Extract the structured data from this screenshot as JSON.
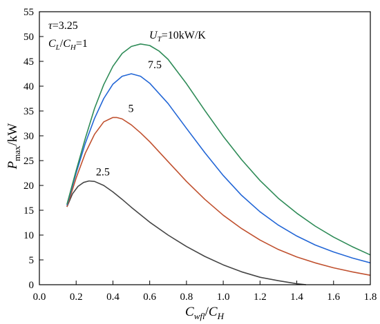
{
  "chart_data": {
    "type": "line",
    "title": "",
    "xlabel": {
      "main": "C",
      "sub1": "wfl",
      "slash": "/",
      "main2": "C",
      "sub2": "H"
    },
    "ylabel": {
      "main": "P",
      "sub": "max",
      "unit": "/kW"
    },
    "xlim": [
      0.0,
      1.8
    ],
    "ylim": [
      0,
      55
    ],
    "xticks": [
      "0.0",
      "0.2",
      "0.4",
      "0.6",
      "0.8",
      "1.0",
      "1.2",
      "1.4",
      "1.6",
      "1.8"
    ],
    "yticks": [
      "0",
      "5",
      "10",
      "15",
      "20",
      "25",
      "30",
      "35",
      "40",
      "45",
      "50",
      "55"
    ],
    "grid": false,
    "annotations": {
      "tau": {
        "sym": "τ",
        "text": "=3.25"
      },
      "ratio": {
        "c1": "C",
        "s1": "L",
        "slash": "/",
        "c2": "C",
        "s2": "H",
        "rest": "=1"
      },
      "ut": {
        "main": "U",
        "sub": "T",
        "rest": "=10kW/K"
      }
    },
    "series": [
      {
        "label": "2.5",
        "color": "#454545",
        "points": [
          [
            0.15,
            15.7
          ],
          [
            0.18,
            18.3
          ],
          [
            0.21,
            19.8
          ],
          [
            0.24,
            20.6
          ],
          [
            0.27,
            20.9
          ],
          [
            0.3,
            20.8
          ],
          [
            0.35,
            20.0
          ],
          [
            0.4,
            18.7
          ],
          [
            0.45,
            17.2
          ],
          [
            0.5,
            15.6
          ],
          [
            0.55,
            14.1
          ],
          [
            0.6,
            12.6
          ],
          [
            0.7,
            10.0
          ],
          [
            0.8,
            7.7
          ],
          [
            0.9,
            5.7
          ],
          [
            1.0,
            4.0
          ],
          [
            1.1,
            2.6
          ],
          [
            1.2,
            1.5
          ],
          [
            1.3,
            0.8
          ],
          [
            1.4,
            0.2
          ],
          [
            1.45,
            0.0
          ]
        ]
      },
      {
        "label": "5",
        "color": "#c0502e",
        "points": [
          [
            0.15,
            15.7
          ],
          [
            0.2,
            21.5
          ],
          [
            0.25,
            26.5
          ],
          [
            0.3,
            30.3
          ],
          [
            0.35,
            32.8
          ],
          [
            0.4,
            33.7
          ],
          [
            0.42,
            33.7
          ],
          [
            0.45,
            33.4
          ],
          [
            0.5,
            32.2
          ],
          [
            0.55,
            30.6
          ],
          [
            0.6,
            28.8
          ],
          [
            0.7,
            24.8
          ],
          [
            0.8,
            20.8
          ],
          [
            0.9,
            17.2
          ],
          [
            1.0,
            14.0
          ],
          [
            1.1,
            11.3
          ],
          [
            1.2,
            9.0
          ],
          [
            1.3,
            7.1
          ],
          [
            1.4,
            5.6
          ],
          [
            1.5,
            4.4
          ],
          [
            1.6,
            3.4
          ],
          [
            1.7,
            2.6
          ],
          [
            1.8,
            1.9
          ]
        ]
      },
      {
        "label": "7.5",
        "color": "#2266d6",
        "points": [
          [
            0.15,
            16.0
          ],
          [
            0.2,
            22.5
          ],
          [
            0.25,
            28.5
          ],
          [
            0.3,
            33.5
          ],
          [
            0.35,
            37.5
          ],
          [
            0.4,
            40.4
          ],
          [
            0.45,
            42.0
          ],
          [
            0.5,
            42.5
          ],
          [
            0.55,
            42.0
          ],
          [
            0.6,
            40.6
          ],
          [
            0.7,
            36.5
          ],
          [
            0.8,
            31.5
          ],
          [
            0.9,
            26.6
          ],
          [
            1.0,
            22.0
          ],
          [
            1.1,
            18.0
          ],
          [
            1.2,
            14.7
          ],
          [
            1.3,
            12.0
          ],
          [
            1.4,
            9.8
          ],
          [
            1.5,
            8.0
          ],
          [
            1.6,
            6.6
          ],
          [
            1.7,
            5.4
          ],
          [
            1.8,
            4.4
          ]
        ]
      },
      {
        "label": "",
        "color": "#2e8b57",
        "points": [
          [
            0.15,
            16.2
          ],
          [
            0.2,
            23.0
          ],
          [
            0.25,
            29.5
          ],
          [
            0.3,
            35.5
          ],
          [
            0.35,
            40.3
          ],
          [
            0.4,
            44.0
          ],
          [
            0.45,
            46.6
          ],
          [
            0.5,
            48.0
          ],
          [
            0.55,
            48.5
          ],
          [
            0.6,
            48.2
          ],
          [
            0.65,
            47.1
          ],
          [
            0.7,
            45.4
          ],
          [
            0.8,
            40.5
          ],
          [
            0.9,
            35.1
          ],
          [
            1.0,
            29.9
          ],
          [
            1.1,
            25.2
          ],
          [
            1.2,
            21.0
          ],
          [
            1.3,
            17.4
          ],
          [
            1.4,
            14.4
          ],
          [
            1.5,
            11.8
          ],
          [
            1.6,
            9.6
          ],
          [
            1.7,
            7.7
          ],
          [
            1.8,
            6.0
          ]
        ]
      }
    ]
  }
}
